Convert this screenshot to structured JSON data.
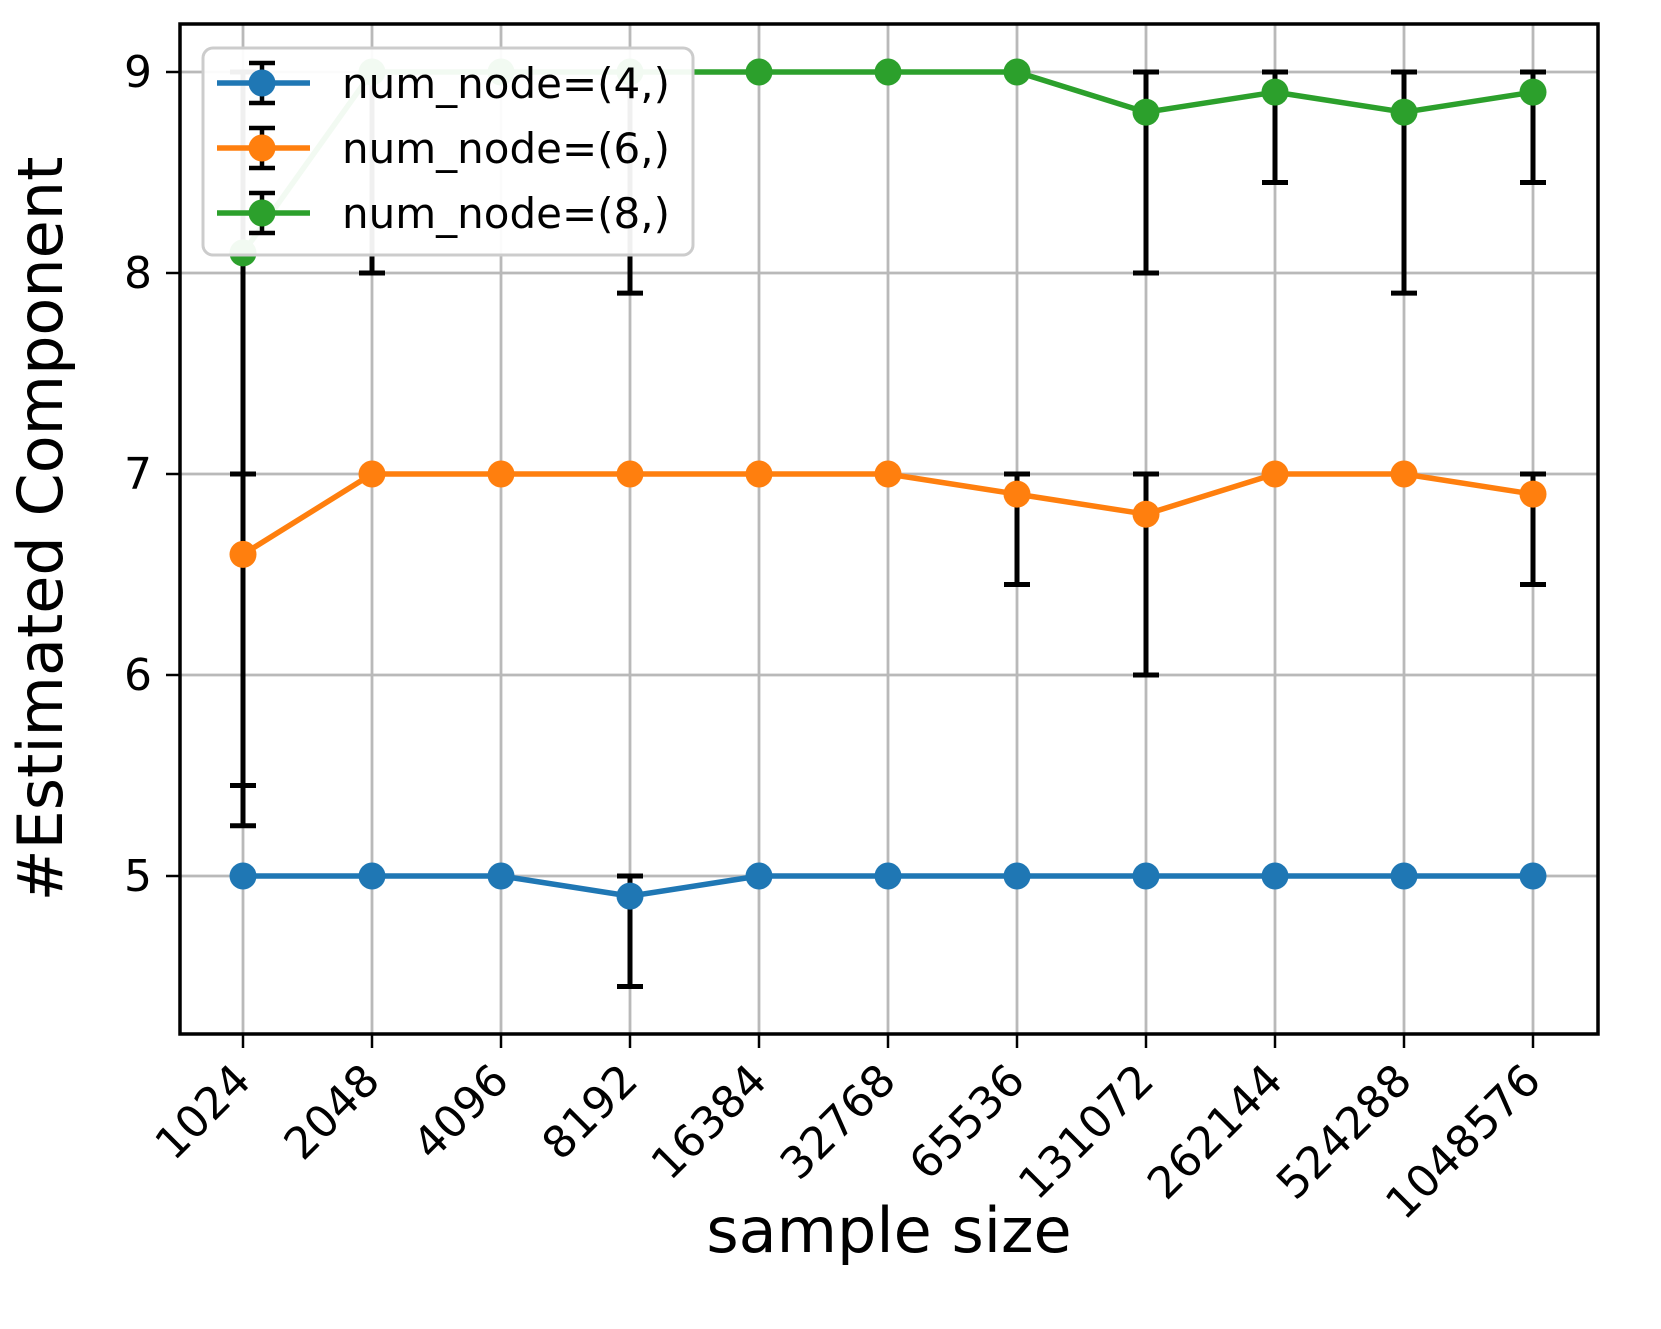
{
  "figure": {
    "background": "#ffffff",
    "plot_border_color": "#000000"
  },
  "chart_data": {
    "type": "line",
    "title": "",
    "xlabel": "sample size",
    "ylabel": "#Estimated Component",
    "categories": [
      "1024",
      "2048",
      "4096",
      "8192",
      "16384",
      "32768",
      "65536",
      "131072",
      "262144",
      "524288",
      "1048576"
    ],
    "yticks": [
      "5",
      "6",
      "7",
      "8",
      "9"
    ],
    "ylim": [
      4.21,
      9.24
    ],
    "grid": true,
    "grid_color": "#b9b9b9",
    "error_bar_color": "#000000",
    "legend_position": "upper left",
    "series": [
      {
        "name": "num_node=(4,)",
        "color": "#1f77b4",
        "values": [
          5.0,
          5.0,
          5.0,
          4.9,
          5.0,
          5.0,
          5.0,
          5.0,
          5.0,
          5.0,
          5.0
        ],
        "error_ranges": [
          null,
          null,
          null,
          [
            4.45,
            5.0
          ],
          null,
          null,
          null,
          null,
          null,
          null,
          null
        ]
      },
      {
        "name": "num_node=(6,)",
        "color": "#ff7f0e",
        "values": [
          6.6,
          7.0,
          7.0,
          7.0,
          7.0,
          7.0,
          6.9,
          6.8,
          7.0,
          7.0,
          6.9
        ],
        "error_ranges": [
          [
            5.45,
            7.0
          ],
          null,
          null,
          null,
          null,
          null,
          [
            6.45,
            7.0
          ],
          [
            6.0,
            7.0
          ],
          null,
          null,
          [
            6.45,
            7.0
          ]
        ]
      },
      {
        "name": "num_node=(8,)",
        "color": "#2ca02c",
        "values": [
          8.1,
          9.0,
          9.0,
          9.0,
          9.0,
          9.0,
          9.0,
          8.8,
          8.9,
          8.8,
          8.9
        ],
        "error_ranges": [
          [
            5.25,
            9.0
          ],
          [
            8.0,
            9.0
          ],
          null,
          [
            7.9,
            9.0
          ],
          null,
          null,
          null,
          [
            8.0,
            9.0
          ],
          [
            8.45,
            9.0
          ],
          [
            7.9,
            9.0
          ],
          [
            8.45,
            9.0
          ]
        ]
      }
    ]
  }
}
